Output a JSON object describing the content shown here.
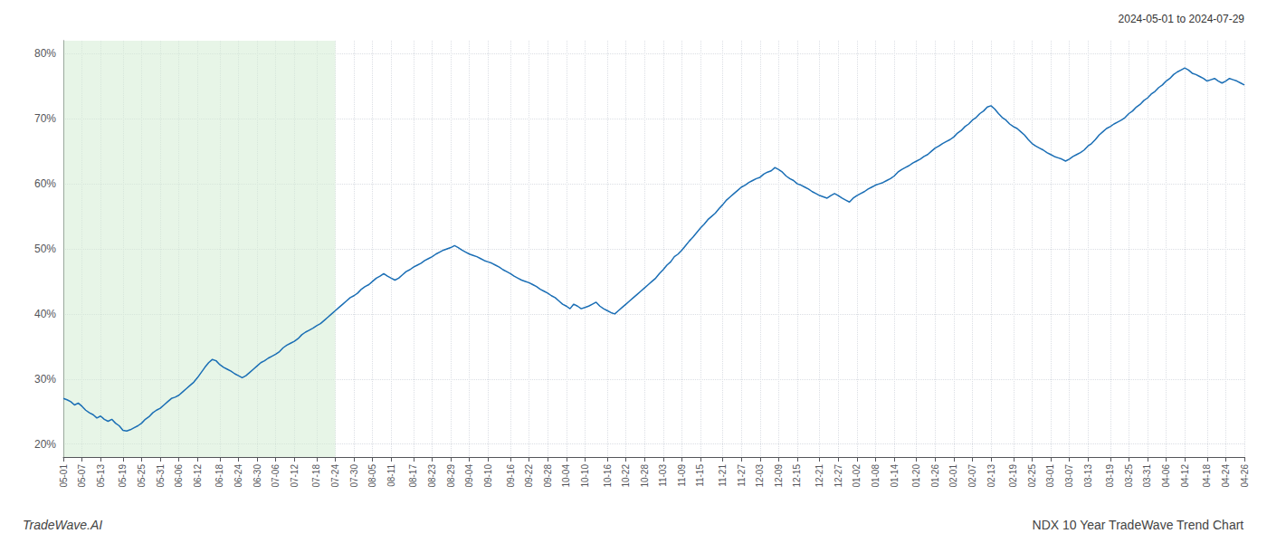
{
  "chart_data": {
    "type": "line",
    "title": "NDX 10 Year TradeWave Trend Chart",
    "subtitle": "2024-05-01 to 2024-07-29",
    "annotation": "TradeWave.AI",
    "categories": [
      "05-01",
      null,
      null,
      null,
      null,
      "05-07",
      null,
      null,
      null,
      null,
      "05-13",
      null,
      null,
      null,
      null,
      null,
      "05-19",
      null,
      null,
      null,
      null,
      "05-25",
      null,
      null,
      null,
      null,
      "05-31",
      null,
      null,
      null,
      null,
      "06-06",
      null,
      null,
      null,
      null,
      "06-12",
      null,
      null,
      null,
      null,
      null,
      "06-18",
      null,
      null,
      null,
      null,
      "06-24",
      null,
      null,
      null,
      null,
      "06-30",
      null,
      null,
      null,
      null,
      "07-06",
      null,
      null,
      null,
      null,
      "07-12",
      null,
      null,
      null,
      null,
      null,
      "07-18",
      null,
      null,
      null,
      null,
      "07-24",
      null,
      null,
      null,
      null,
      "07-30",
      null,
      null,
      null,
      null,
      "08-05",
      null,
      null,
      null,
      null,
      "08-11",
      null,
      null,
      null,
      null,
      null,
      "08-17",
      null,
      null,
      null,
      null,
      "08-23",
      null,
      null,
      null,
      null,
      "08-29",
      null,
      null,
      null,
      null,
      "09-04",
      null,
      null,
      null,
      null,
      "09-10",
      null,
      null,
      null,
      null,
      null,
      "09-16",
      null,
      null,
      null,
      null,
      "09-22",
      null,
      null,
      null,
      null,
      "09-28",
      null,
      null,
      null,
      null,
      "10-04",
      null,
      null,
      null,
      null,
      "10-10",
      null,
      null,
      null,
      null,
      null,
      "10-16",
      null,
      null,
      null,
      null,
      "10-22",
      null,
      null,
      null,
      null,
      "10-28",
      null,
      null,
      null,
      null,
      "11-03",
      null,
      null,
      null,
      null,
      "11-09",
      null,
      null,
      null,
      null,
      "11-15",
      null,
      null,
      null,
      null,
      null,
      "11-21",
      null,
      null,
      null,
      null,
      "11-27",
      null,
      null,
      null,
      null,
      "12-03",
      null,
      null,
      null,
      null,
      "12-09",
      null,
      null,
      null,
      null,
      "12-15",
      null,
      null,
      null,
      null,
      null,
      "12-21",
      null,
      null,
      null,
      null,
      "12-27",
      null,
      null,
      null,
      null,
      "01-02",
      null,
      null,
      null,
      null,
      "01-08",
      null,
      null,
      null,
      null,
      "01-14",
      null,
      null,
      null,
      null,
      null,
      "01-20",
      null,
      null,
      null,
      null,
      "01-26",
      null,
      null,
      null,
      null,
      "02-01",
      null,
      null,
      null,
      null,
      "02-07",
      null,
      null,
      null,
      null,
      "02-13",
      null,
      null,
      null,
      null,
      null,
      "02-19",
      null,
      null,
      null,
      null,
      "02-25",
      null,
      null,
      null,
      null,
      "03-01",
      null,
      null,
      null,
      null,
      "03-07",
      null,
      null,
      null,
      null,
      "03-13",
      null,
      null,
      null,
      null,
      null,
      "03-19",
      null,
      null,
      null,
      null,
      "03-25",
      null,
      null,
      null,
      null,
      "03-31",
      null,
      null,
      null,
      null,
      "04-06",
      null,
      null,
      null,
      null,
      "04-12",
      null,
      null,
      null,
      null,
      null,
      "04-18",
      null,
      null,
      null,
      null,
      "04-24",
      null,
      null,
      null,
      null,
      "04-26"
    ],
    "values": [
      0.27,
      0.268,
      0.265,
      0.26,
      0.263,
      0.258,
      0.252,
      0.248,
      0.245,
      0.24,
      0.243,
      0.238,
      0.235,
      0.238,
      0.232,
      0.228,
      0.221,
      0.22,
      0.222,
      0.225,
      0.228,
      0.232,
      0.238,
      0.242,
      0.248,
      0.252,
      0.255,
      0.26,
      0.265,
      0.27,
      0.272,
      0.275,
      0.28,
      0.285,
      0.29,
      0.295,
      0.302,
      0.31,
      0.318,
      0.325,
      0.33,
      0.328,
      0.322,
      0.318,
      0.315,
      0.312,
      0.308,
      0.305,
      0.302,
      0.305,
      0.31,
      0.315,
      0.32,
      0.325,
      0.328,
      0.332,
      0.335,
      0.338,
      0.342,
      0.348,
      0.352,
      0.355,
      0.358,
      0.362,
      0.368,
      0.372,
      0.375,
      0.378,
      0.382,
      0.385,
      0.39,
      0.395,
      0.4,
      0.405,
      0.41,
      0.415,
      0.42,
      0.425,
      0.428,
      0.432,
      0.438,
      0.442,
      0.445,
      0.45,
      0.455,
      0.458,
      0.462,
      0.458,
      0.455,
      0.452,
      0.455,
      0.46,
      0.465,
      0.468,
      0.472,
      0.475,
      0.478,
      0.482,
      0.485,
      0.488,
      0.492,
      0.495,
      0.498,
      0.5,
      0.502,
      0.505,
      0.502,
      0.498,
      0.495,
      0.492,
      0.49,
      0.488,
      0.485,
      0.482,
      0.48,
      0.478,
      0.475,
      0.472,
      0.468,
      0.465,
      0.462,
      0.458,
      0.455,
      0.452,
      0.45,
      0.448,
      0.445,
      0.442,
      0.438,
      0.435,
      0.432,
      0.428,
      0.425,
      0.42,
      0.415,
      0.412,
      0.408,
      0.415,
      0.412,
      0.408,
      0.41,
      0.412,
      0.415,
      0.418,
      0.412,
      0.408,
      0.405,
      0.402,
      0.4,
      0.405,
      0.41,
      0.415,
      0.42,
      0.425,
      0.43,
      0.435,
      0.44,
      0.445,
      0.45,
      0.455,
      0.462,
      0.468,
      0.475,
      0.48,
      0.488,
      0.492,
      0.498,
      0.505,
      0.512,
      0.518,
      0.525,
      0.532,
      0.538,
      0.545,
      0.55,
      0.555,
      0.562,
      0.568,
      0.575,
      0.58,
      0.585,
      0.59,
      0.595,
      0.598,
      0.602,
      0.605,
      0.608,
      0.61,
      0.615,
      0.618,
      0.62,
      0.625,
      0.622,
      0.618,
      0.612,
      0.608,
      0.605,
      0.6,
      0.598,
      0.595,
      0.592,
      0.588,
      0.585,
      0.582,
      0.58,
      0.578,
      0.582,
      0.585,
      0.582,
      0.578,
      0.575,
      0.572,
      0.578,
      0.582,
      0.585,
      0.588,
      0.592,
      0.595,
      0.598,
      0.6,
      0.602,
      0.605,
      0.608,
      0.612,
      0.618,
      0.622,
      0.625,
      0.628,
      0.632,
      0.635,
      0.638,
      0.642,
      0.645,
      0.65,
      0.655,
      0.658,
      0.662,
      0.665,
      0.668,
      0.672,
      0.678,
      0.682,
      0.688,
      0.692,
      0.698,
      0.702,
      0.708,
      0.712,
      0.718,
      0.72,
      0.715,
      0.708,
      0.702,
      0.698,
      0.692,
      0.688,
      0.685,
      0.68,
      0.675,
      0.668,
      0.662,
      0.658,
      0.655,
      0.652,
      0.648,
      0.645,
      0.642,
      0.64,
      0.638,
      0.635,
      0.638,
      0.642,
      0.645,
      0.648,
      0.652,
      0.658,
      0.662,
      0.668,
      0.675,
      0.68,
      0.685,
      0.688,
      0.692,
      0.695,
      0.698,
      0.702,
      0.708,
      0.712,
      0.718,
      0.722,
      0.728,
      0.732,
      0.738,
      0.742,
      0.748,
      0.752,
      0.758,
      0.762,
      0.768,
      0.772,
      0.775,
      0.778,
      0.775,
      0.77,
      0.768,
      0.765,
      0.762,
      0.758,
      0.76,
      0.762,
      0.758,
      0.755,
      0.758,
      0.762,
      0.76,
      0.758,
      0.755,
      0.752
    ],
    "color": "#1a6eb5",
    "ylim": [
      0.18,
      0.82
    ],
    "yticks": [
      {
        "value": 0.2,
        "label": "20%"
      },
      {
        "value": 0.3,
        "label": "30%"
      },
      {
        "value": 0.4,
        "label": "40%"
      },
      {
        "value": 0.5,
        "label": "50%"
      },
      {
        "value": 0.6,
        "label": "60%"
      },
      {
        "value": 0.7,
        "label": "70%"
      },
      {
        "value": 0.8,
        "label": "80%"
      }
    ],
    "grid": true,
    "highlight": {
      "start": "05-01",
      "end": "07-24",
      "color": "#d4ecd4"
    }
  }
}
